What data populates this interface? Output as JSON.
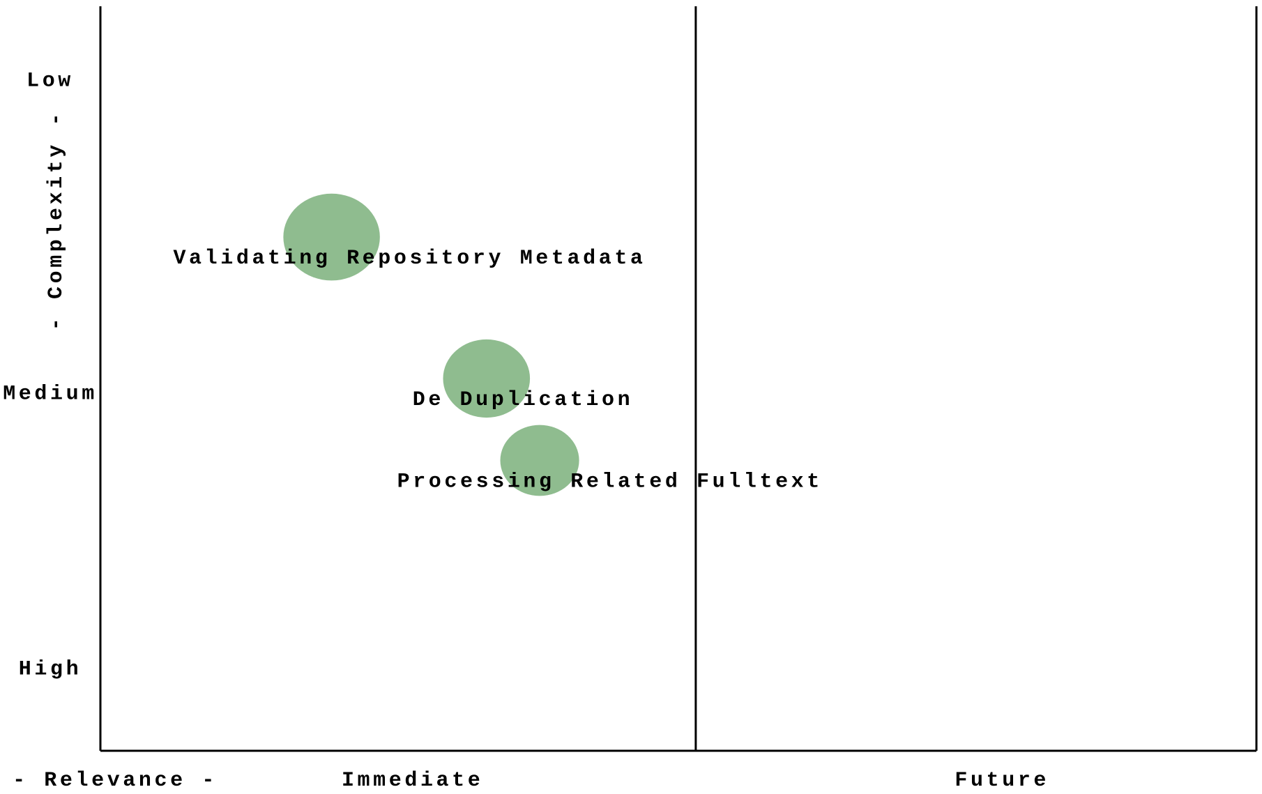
{
  "chart_data": {
    "type": "bubble",
    "xlabel": "- Relevance -",
    "ylabel": "- Complexity -",
    "xlim": [
      0,
      100
    ],
    "ylim": [
      0,
      100
    ],
    "xticks": [
      {
        "value": 27,
        "label": "Immediate"
      },
      {
        "value": 78,
        "label": "Future"
      }
    ],
    "yticks": [
      {
        "value": 90,
        "label": "Low"
      },
      {
        "value": 48,
        "label": "Medium"
      },
      {
        "value": 11,
        "label": "High"
      }
    ],
    "xdividers": [
      51.5
    ],
    "color": "#8fbc8f",
    "points": [
      {
        "label": "Validating Repository Metadata",
        "x": 20,
        "y": 69,
        "size": 60
      },
      {
        "label": "De Duplication",
        "x": 33.4,
        "y": 50,
        "size": 54
      },
      {
        "label": "Processing Related Fulltext",
        "x": 38,
        "y": 39,
        "size": 49
      }
    ]
  }
}
